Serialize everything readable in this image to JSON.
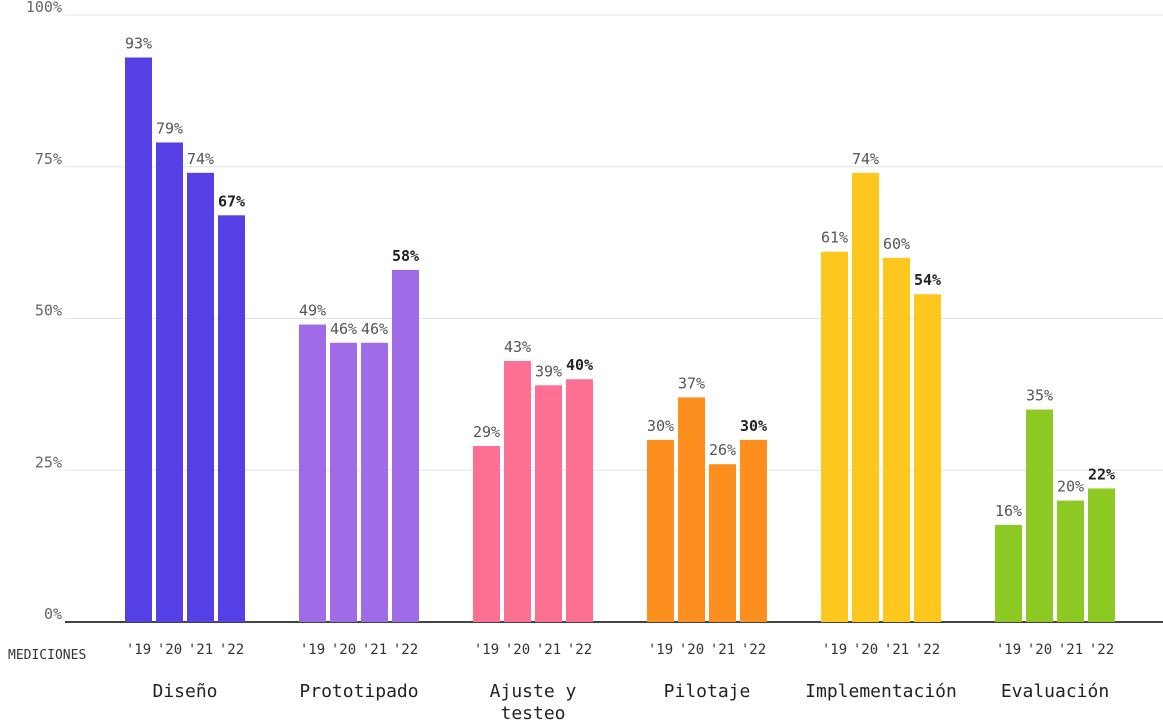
{
  "chart_data": {
    "type": "bar",
    "xlabel": "MEDICIONES",
    "ylim": [
      0,
      100
    ],
    "yticks": [
      "0%",
      "25%",
      "50%",
      "75%",
      "100%"
    ],
    "ytick_values": [
      0,
      25,
      50,
      75,
      100
    ],
    "years": [
      "'19",
      "'20",
      "'21",
      "'22"
    ],
    "grid": true,
    "groups": [
      {
        "name": "Diseño",
        "lines": [
          "Diseño"
        ],
        "color": "#5540e6",
        "values": [
          93,
          79,
          74,
          67
        ],
        "labels": [
          "93%",
          "79%",
          "74%",
          "67%"
        ]
      },
      {
        "name": "Prototipado",
        "lines": [
          "Prototipado"
        ],
        "color": "#a06be6",
        "values": [
          49,
          46,
          46,
          58
        ],
        "labels": [
          "49%",
          "46%",
          "46%",
          "58%"
        ]
      },
      {
        "name": "Ajuste y testeo",
        "lines": [
          "Ajuste y",
          "testeo"
        ],
        "color": "#fd6f93",
        "values": [
          29,
          43,
          39,
          40
        ],
        "labels": [
          "29%",
          "43%",
          "39%",
          "40%"
        ]
      },
      {
        "name": "Pilotaje",
        "lines": [
          "Pilotaje"
        ],
        "color": "#fd8f1f",
        "values": [
          30,
          37,
          26,
          30
        ],
        "labels": [
          "30%",
          "37%",
          "26%",
          "30%"
        ]
      },
      {
        "name": "Implementación",
        "lines": [
          "Implementación"
        ],
        "color": "#fec71e",
        "values": [
          61,
          74,
          60,
          54
        ],
        "labels": [
          "61%",
          "74%",
          "60%",
          "54%"
        ]
      },
      {
        "name": "Evaluación",
        "lines": [
          "Evaluación"
        ],
        "color": "#8dc923",
        "values": [
          16,
          35,
          20,
          22
        ],
        "labels": [
          "16%",
          "35%",
          "20%",
          "22%"
        ]
      }
    ]
  }
}
